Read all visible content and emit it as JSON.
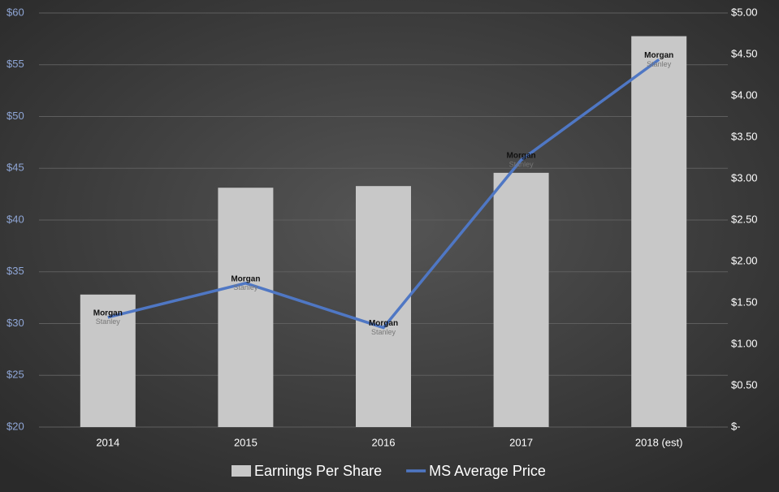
{
  "chart_data": {
    "type": "bar-line",
    "categories": [
      "2014",
      "2015",
      "2016",
      "2017",
      "2018 (est)"
    ],
    "series": [
      {
        "name": "Earnings Per Share",
        "type": "bar",
        "axis": "y2",
        "color": "#c8c8c8",
        "values": [
          1.6,
          2.89,
          2.91,
          3.07,
          4.72
        ]
      },
      {
        "name": "MS Average Price",
        "type": "line",
        "axis": "y",
        "color": "#4f77c4",
        "values": [
          30.6,
          33.9,
          29.6,
          45.8,
          55.5
        ]
      }
    ],
    "marker_label": [
      "Morgan",
      "Stanley"
    ],
    "ylim": [
      20,
      60
    ],
    "yticks": [
      {
        "value": 20,
        "label": "$20"
      },
      {
        "value": 25,
        "label": "$25"
      },
      {
        "value": 30,
        "label": "$30"
      },
      {
        "value": 35,
        "label": "$35"
      },
      {
        "value": 40,
        "label": "$40"
      },
      {
        "value": 45,
        "label": "$45"
      },
      {
        "value": 50,
        "label": "$50"
      },
      {
        "value": 55,
        "label": "$55"
      },
      {
        "value": 60,
        "label": "$60"
      }
    ],
    "y2lim": [
      0,
      5
    ],
    "y2ticks": [
      {
        "value": 0,
        "label": "$-"
      },
      {
        "value": 0.5,
        "label": "$0.50"
      },
      {
        "value": 1,
        "label": "$1.00"
      },
      {
        "value": 1.5,
        "label": "$1.50"
      },
      {
        "value": 2,
        "label": "$2.00"
      },
      {
        "value": 2.5,
        "label": "$2.50"
      },
      {
        "value": 3,
        "label": "$3.00"
      },
      {
        "value": 3.5,
        "label": "$3.50"
      },
      {
        "value": 4,
        "label": "$4.00"
      },
      {
        "value": 4.5,
        "label": "$4.50"
      },
      {
        "value": 5,
        "label": "$5.00"
      }
    ],
    "grid": true,
    "legend": "bottom"
  }
}
